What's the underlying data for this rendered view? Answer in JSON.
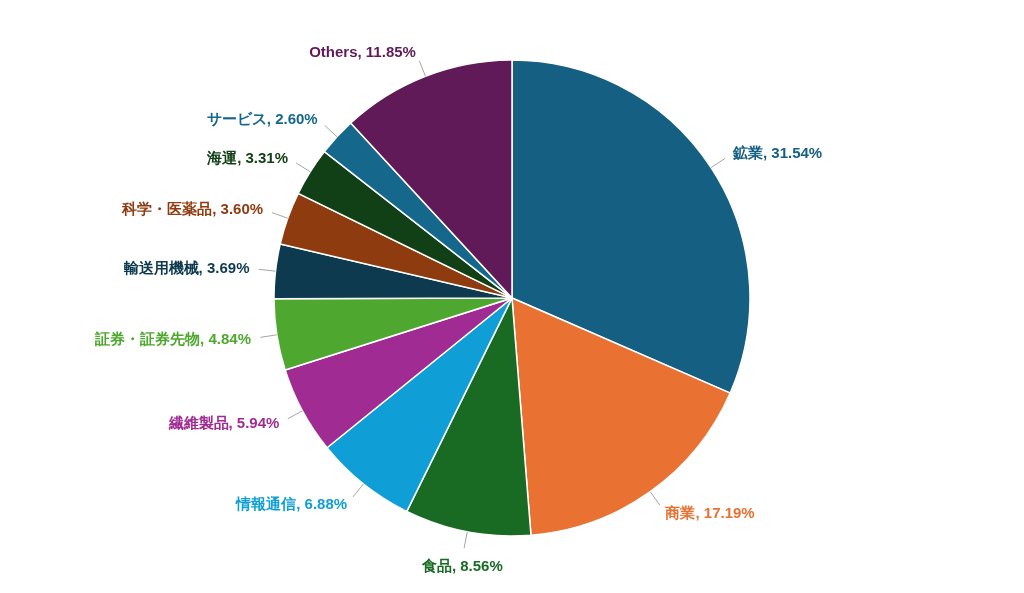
{
  "chart_data": {
    "type": "pie",
    "categories": [
      "鉱業",
      "商業",
      "食品",
      "情報通信",
      "繊維製品",
      "証券・証券先物",
      "輸送用機械",
      "科学・医薬品",
      "海運",
      "サービス",
      "Others"
    ],
    "values": [
      31.54,
      17.19,
      8.56,
      6.88,
      5.94,
      4.84,
      3.69,
      3.6,
      3.31,
      2.6,
      11.85
    ],
    "value_labels": [
      "31.54%",
      "17.19%",
      "8.56%",
      "6.88%",
      "5.94%",
      "4.84%",
      "3.69%",
      "3.60%",
      "3.31%",
      "2.60%",
      "11.85%"
    ],
    "colors": [
      "#156082",
      "#e97132",
      "#196b24",
      "#0f9ed5",
      "#a02b93",
      "#4ea72e",
      "#0e3a4f",
      "#8f3b10",
      "#124016",
      "#16678c",
      "#5f1a57"
    ]
  }
}
